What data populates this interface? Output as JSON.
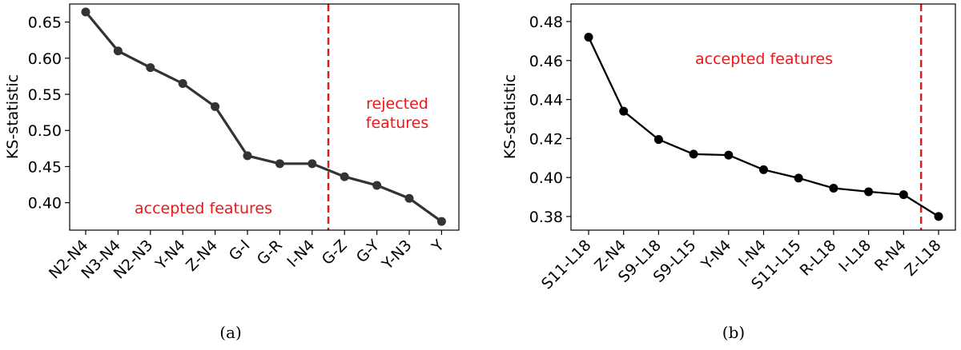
{
  "chart_data": [
    {
      "type": "line",
      "caption": "(a)",
      "ylabel": "KS-statistic",
      "ylim": [
        0.362,
        0.675
      ],
      "yticks": [
        0.4,
        0.45,
        0.5,
        0.55,
        0.6,
        0.65
      ],
      "ytick_labels": [
        "0.40",
        "0.45",
        "0.50",
        "0.55",
        "0.60",
        "0.65"
      ],
      "categories": [
        "N2-N4",
        "N3-N4",
        "N2-N3",
        "Y-N4",
        "Z-N4",
        "G-I",
        "G-R",
        "I-N4",
        "G-Z",
        "G-Y",
        "Y-N3",
        "Y"
      ],
      "values": [
        0.664,
        0.61,
        0.587,
        0.565,
        0.533,
        0.465,
        0.454,
        0.454,
        0.436,
        0.424,
        0.406,
        0.374
      ],
      "series_color": "#333333",
      "threshold_position": 7.5,
      "threshold_color": "#e8191b",
      "annotations": [
        {
          "text": "accepted features",
          "color": "#e8191b"
        },
        {
          "text": "rejected",
          "color": "#e8191b"
        },
        {
          "text": "features",
          "color": "#e8191b"
        }
      ],
      "grid": false
    },
    {
      "type": "line",
      "caption": "(b)",
      "ylabel": "KS-statistic",
      "ylim": [
        0.373,
        0.489
      ],
      "yticks": [
        0.38,
        0.4,
        0.42,
        0.44,
        0.46,
        0.48
      ],
      "ytick_labels": [
        "0.38",
        "0.40",
        "0.42",
        "0.44",
        "0.46",
        "0.48"
      ],
      "categories": [
        "S11-L18",
        "Z-N4",
        "S9-L18",
        "S9-L15",
        "Y-N4",
        "I-N4",
        "S11-L15",
        "R-L18",
        "I-L18",
        "R-N4",
        "Z-L18"
      ],
      "values": [
        0.472,
        0.434,
        0.4195,
        0.412,
        0.4115,
        0.404,
        0.3997,
        0.3945,
        0.3927,
        0.3912,
        0.38
      ],
      "series_color": "#000000",
      "threshold_position": 9.5,
      "threshold_color": "#e8191b",
      "annotations": [
        {
          "text": "accepted features",
          "color": "#e8191b"
        }
      ],
      "grid": false
    }
  ]
}
